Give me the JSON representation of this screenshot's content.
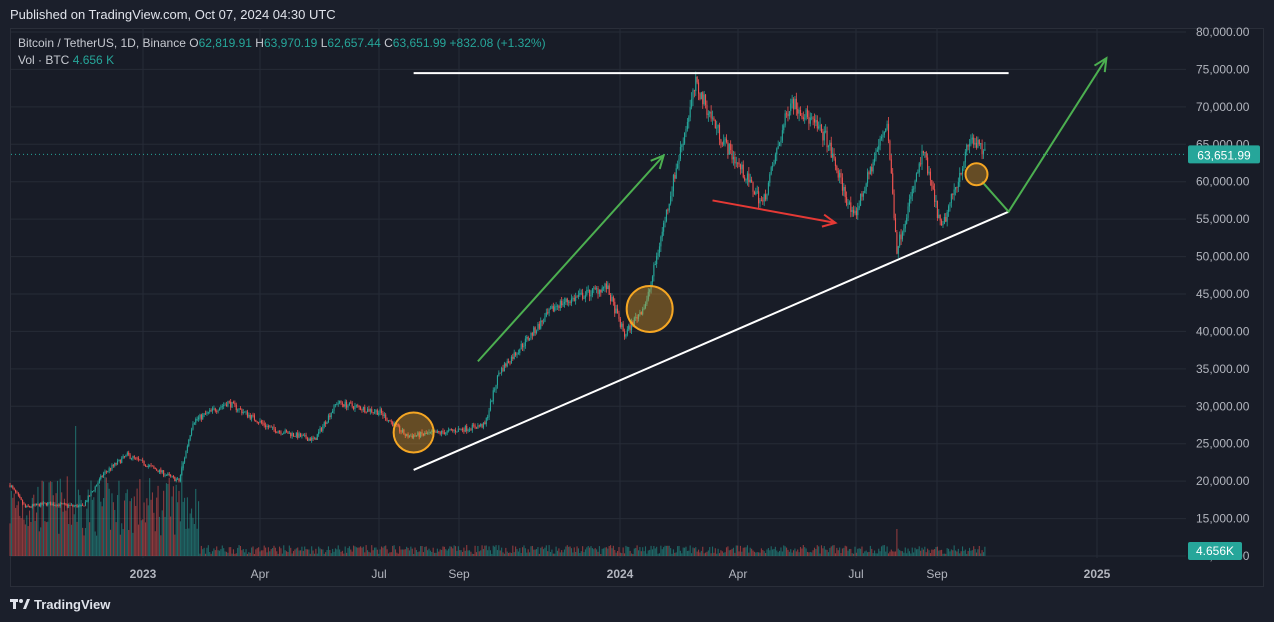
{
  "publish_note": "Published on TradingView.com, Oct 07, 2024 04:30 UTC",
  "legend": {
    "symbol": "Bitcoin / TetherUS, 1D, Binance",
    "open_label": "O",
    "open": "62,819.91",
    "high_label": "H",
    "high": "63,970.19",
    "low_label": "L",
    "low": "62,657.44",
    "close_label": "C",
    "close": "63,651.99",
    "change": "+832.08 (+1.32%)",
    "vol_label": "Vol · BTC",
    "vol_value": "4.656 K"
  },
  "footer": {
    "logo_icon": "tradingview-logo-icon",
    "brand": "TradingView"
  },
  "colors": {
    "up": "#26a69a",
    "down": "#ef5350",
    "bg": "#181c27",
    "grid": "#262b37",
    "arrow_green": "#4caf50",
    "arrow_red": "#e53935",
    "circle": "#f5a623",
    "trendline": "#ffffff"
  },
  "chart_data": {
    "type": "candlestick",
    "y_axis_labels": [
      "80,000.00",
      "75,000.00",
      "70,000.00",
      "65,000.00",
      "60,000.00",
      "55,000.00",
      "50,000.00",
      "45,000.00",
      "40,000.00",
      "35,000.00",
      "30,000.00",
      "25,000.00",
      "20,000.00",
      "15,000.00",
      "10,000.00"
    ],
    "y_range": [
      10000,
      80000
    ],
    "x_axis_labels": [
      "2023",
      "Apr",
      "Jul",
      "Sep",
      "2024",
      "Apr",
      "Jul",
      "Sep",
      "2025"
    ],
    "x_range": [
      "2022-11-09",
      "2025-02-28"
    ],
    "last_price_label": "63,651.99",
    "volume_label": "4.656K",
    "price_path": [
      {
        "date": "2022-11-09",
        "price": 19500
      },
      {
        "date": "2022-11-20",
        "price": 16500
      },
      {
        "date": "2022-12-05",
        "price": 17000
      },
      {
        "date": "2022-12-31",
        "price": 16600
      },
      {
        "date": "2023-01-15",
        "price": 21000
      },
      {
        "date": "2023-02-01",
        "price": 23500
      },
      {
        "date": "2023-03-10",
        "price": 20000
      },
      {
        "date": "2023-03-20",
        "price": 28000
      },
      {
        "date": "2023-04-14",
        "price": 30500
      },
      {
        "date": "2023-05-15",
        "price": 27000
      },
      {
        "date": "2023-06-15",
        "price": 25500
      },
      {
        "date": "2023-07-01",
        "price": 30500
      },
      {
        "date": "2023-08-01",
        "price": 29200
      },
      {
        "date": "2023-08-20",
        "price": 26000
      },
      {
        "date": "2023-09-15",
        "price": 26500
      },
      {
        "date": "2023-10-15",
        "price": 27500
      },
      {
        "date": "2023-10-25",
        "price": 34500
      },
      {
        "date": "2023-12-05",
        "price": 43500
      },
      {
        "date": "2024-01-10",
        "price": 46000
      },
      {
        "date": "2024-01-23",
        "price": 39500
      },
      {
        "date": "2024-02-08",
        "price": 44000
      },
      {
        "date": "2024-02-28",
        "price": 61000
      },
      {
        "date": "2024-03-14",
        "price": 73000
      },
      {
        "date": "2024-04-01",
        "price": 66000
      },
      {
        "date": "2024-05-01",
        "price": 57000
      },
      {
        "date": "2024-05-21",
        "price": 71000
      },
      {
        "date": "2024-06-15",
        "price": 66000
      },
      {
        "date": "2024-07-05",
        "price": 55000
      },
      {
        "date": "2024-07-29",
        "price": 68000
      },
      {
        "date": "2024-08-05",
        "price": 51000
      },
      {
        "date": "2024-08-24",
        "price": 64000
      },
      {
        "date": "2024-09-06",
        "price": 53500
      },
      {
        "date": "2024-09-27",
        "price": 65800
      },
      {
        "date": "2024-10-07",
        "price": 63651
      }
    ],
    "annotations": [
      {
        "type": "horizontal_line",
        "price": 74500,
        "from": "2023-08-25",
        "to": "2024-10-24",
        "color": "#ffffff"
      },
      {
        "type": "trend_line",
        "from": {
          "date": "2023-08-25",
          "price": 21500
        },
        "to": {
          "date": "2024-10-24",
          "price": 56000
        },
        "color": "#ffffff"
      },
      {
        "type": "arrow",
        "from": {
          "date": "2023-10-10",
          "price": 36000
        },
        "to": {
          "date": "2024-02-20",
          "price": 63500
        },
        "color": "#4caf50"
      },
      {
        "type": "arrow",
        "from": {
          "date": "2024-03-26",
          "price": 57500
        },
        "to": {
          "date": "2024-06-22",
          "price": 54500
        },
        "color": "#e53935"
      },
      {
        "type": "polyline",
        "points": [
          {
            "date": "2024-10-05",
            "price": 60000
          },
          {
            "date": "2024-10-24",
            "price": 56000
          },
          {
            "date": "2025-01-02",
            "price": 76500
          }
        ],
        "color": "#4caf50"
      },
      {
        "type": "circle",
        "date": "2023-08-25",
        "price": 26500,
        "size": "medium",
        "color": "#f5a623"
      },
      {
        "type": "circle",
        "date": "2024-02-10",
        "price": 43000,
        "size": "large",
        "color": "#f5a623"
      },
      {
        "type": "circle",
        "date": "2024-10-01",
        "price": 61000,
        "size": "small",
        "color": "#f5a623"
      }
    ]
  }
}
